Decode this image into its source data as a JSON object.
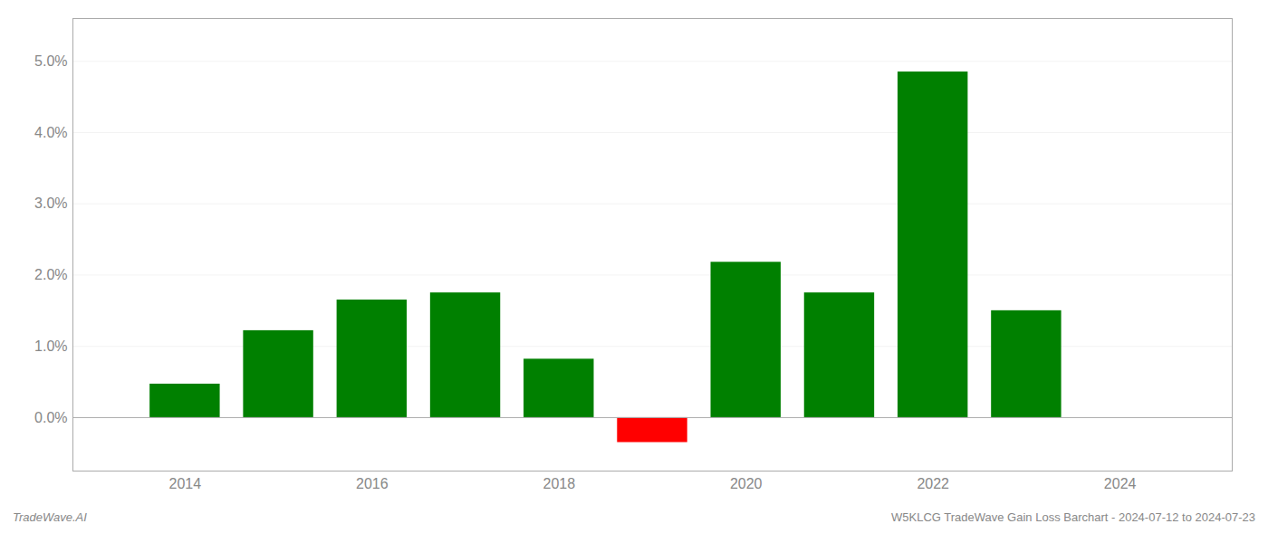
{
  "chart_data": {
    "type": "bar",
    "x": [
      2014,
      2015,
      2016,
      2017,
      2018,
      2019,
      2020,
      2021,
      2022,
      2023
    ],
    "values": [
      0.0047,
      0.0122,
      0.0165,
      0.0175,
      0.0082,
      -0.0035,
      0.0218,
      0.0175,
      0.0485,
      0.015
    ],
    "colors": [
      "#008000",
      "#008000",
      "#008000",
      "#008000",
      "#008000",
      "#ff0000",
      "#008000",
      "#008000",
      "#008000",
      "#008000"
    ],
    "xlim": [
      2012.8,
      2025.2
    ],
    "xticks": [
      2014,
      2016,
      2018,
      2020,
      2022,
      2024
    ],
    "ylim": [
      -0.0075,
      0.056
    ],
    "yticks": [
      {
        "value": 0.0,
        "label": "0.0%"
      },
      {
        "value": 0.01,
        "label": "1.0%"
      },
      {
        "value": 0.02,
        "label": "2.0%"
      },
      {
        "value": 0.03,
        "label": "3.0%"
      },
      {
        "value": 0.04,
        "label": "4.0%"
      },
      {
        "value": 0.05,
        "label": "5.0%"
      }
    ],
    "grid": true,
    "annotations": [
      "TradeWave.AI",
      "W5KLCG TradeWave Gain Loss Barchart - 2024-07-12 to 2024-07-23"
    ]
  }
}
